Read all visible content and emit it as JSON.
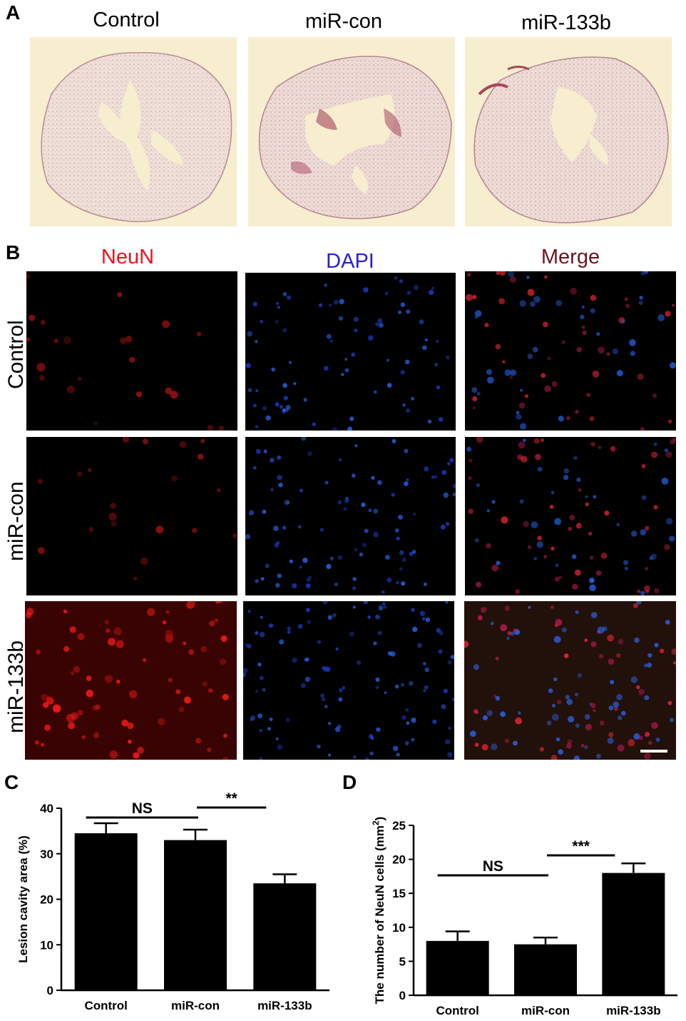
{
  "panelA": {
    "letter": "A",
    "columns": [
      "Control",
      "miR-con",
      "miR-133b"
    ]
  },
  "panelB": {
    "letter": "B",
    "columns": [
      {
        "label": "NeuN",
        "color": "#e8141c"
      },
      {
        "label": "DAPI",
        "color": "#2a1fd4"
      },
      {
        "label": "Merge",
        "color": "#6e1420"
      }
    ],
    "rows": [
      "Control",
      "miR-con",
      "miR-133b"
    ]
  },
  "panelC": {
    "letter": "C",
    "chart_data": {
      "type": "bar",
      "categories": [
        "Control",
        "miR-con",
        "miR-133b"
      ],
      "values": [
        34.5,
        33.0,
        23.5
      ],
      "errors": [
        2.2,
        2.3,
        2.0
      ],
      "ylabel": "Lesion cavity area (%)",
      "ylim": [
        0,
        40
      ],
      "yticks": [
        0,
        10,
        20,
        30,
        40
      ],
      "annotations": [
        {
          "from": 0,
          "to": 1,
          "text": "NS"
        },
        {
          "from": 1,
          "to": 2,
          "text": "**"
        }
      ]
    }
  },
  "panelD": {
    "letter": "D",
    "chart_data": {
      "type": "bar",
      "categories": [
        "Control",
        "miR-con",
        "miR-133b"
      ],
      "values": [
        8.0,
        7.5,
        18.0
      ],
      "errors": [
        1.4,
        1.0,
        1.4
      ],
      "ylabel_main": "The number of NeuN  cells (mm",
      "ylabel_sup": "2",
      "ylabel_end": ")",
      "ylim": [
        0,
        25
      ],
      "yticks": [
        0,
        5,
        10,
        15,
        20,
        25
      ],
      "annotations": [
        {
          "from": 0,
          "to": 1,
          "text": "NS"
        },
        {
          "from": 1,
          "to": 2,
          "text": "***"
        }
      ]
    }
  }
}
